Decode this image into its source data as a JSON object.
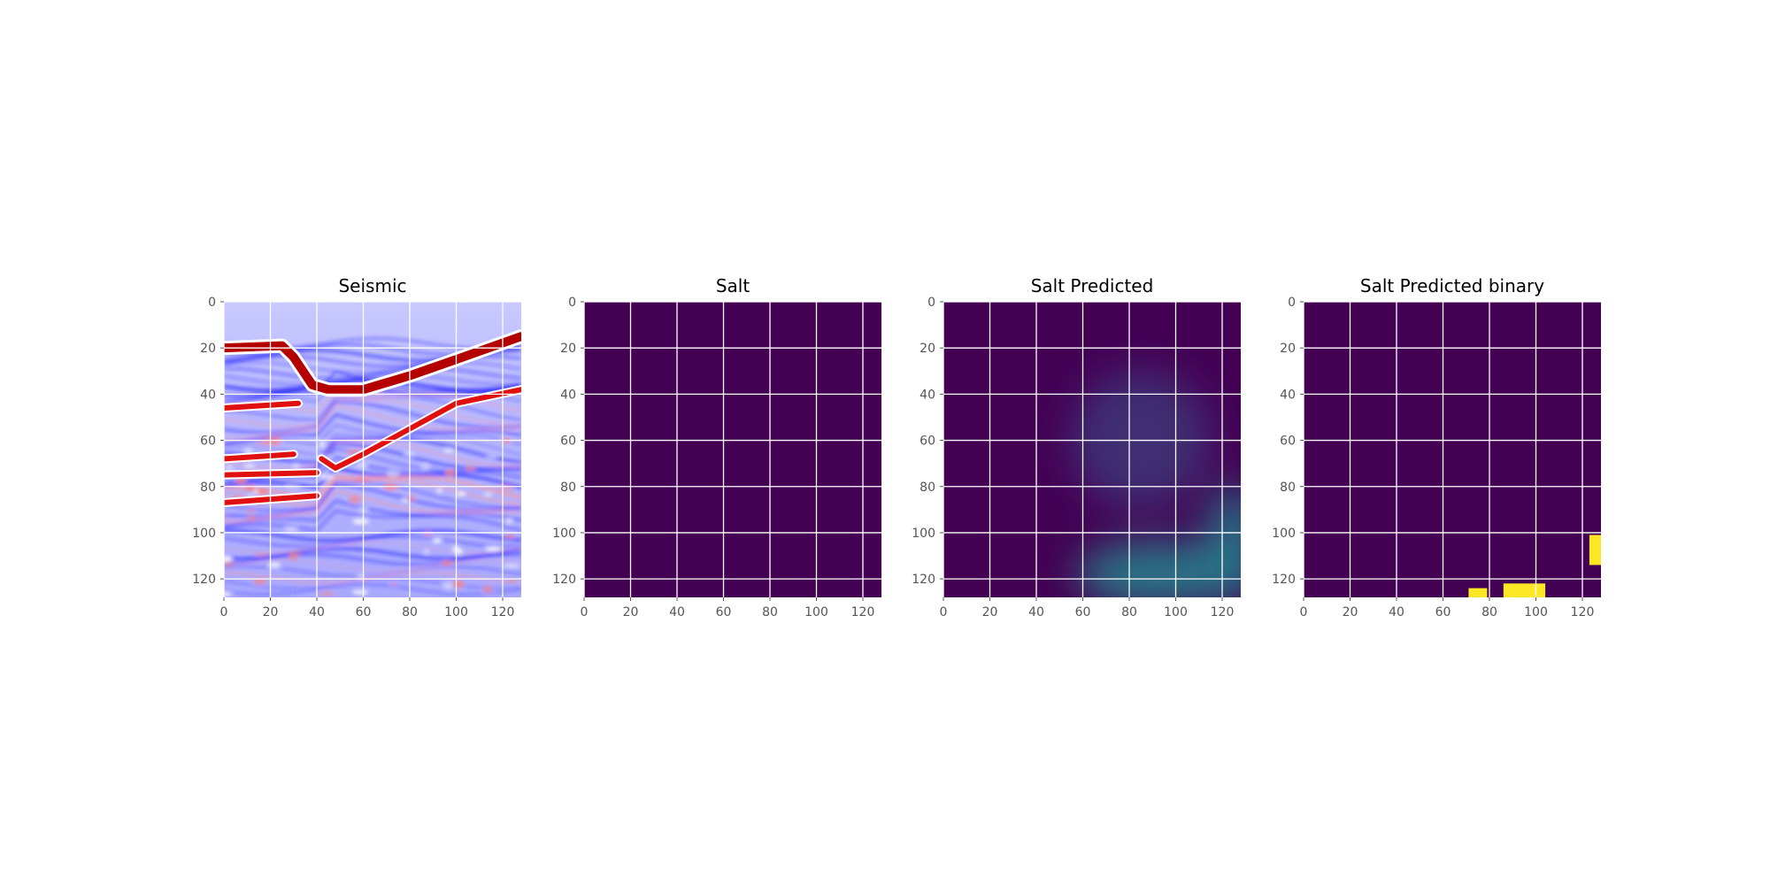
{
  "chart_data": [
    {
      "type": "heatmap",
      "title": "Seismic",
      "colormap": "seismic",
      "xlim": [
        0,
        128
      ],
      "ylim": [
        128,
        0
      ],
      "xticks": [
        0,
        20,
        40,
        60,
        80,
        100,
        120
      ],
      "yticks": [
        0,
        20,
        40,
        60,
        80,
        100,
        120
      ],
      "grid": true,
      "horizons": [
        {
          "color": "red",
          "points": [
            [
              0,
              20
            ],
            [
              25,
              19
            ],
            [
              30,
              24
            ],
            [
              38,
              36
            ],
            [
              45,
              38
            ],
            [
              60,
              38
            ],
            [
              80,
              32
            ],
            [
              100,
              25
            ],
            [
              128,
              15
            ]
          ]
        },
        {
          "color": "red",
          "points": [
            [
              0,
              46
            ],
            [
              32,
              44
            ]
          ]
        },
        {
          "color": "red",
          "points": [
            [
              0,
              68
            ],
            [
              30,
              66
            ]
          ]
        },
        {
          "color": "red",
          "points": [
            [
              0,
              75
            ],
            [
              40,
              74
            ]
          ]
        },
        {
          "color": "red",
          "points": [
            [
              0,
              87
            ],
            [
              40,
              84
            ]
          ]
        },
        {
          "color": "red",
          "points": [
            [
              42,
              68
            ],
            [
              48,
              72
            ],
            [
              60,
              66
            ],
            [
              80,
              55
            ],
            [
              100,
              44
            ],
            [
              128,
              38
            ]
          ]
        }
      ]
    },
    {
      "type": "heatmap",
      "title": "Salt",
      "colormap": "viridis",
      "xlim": [
        0,
        128
      ],
      "ylim": [
        128,
        0
      ],
      "xticks": [
        0,
        20,
        40,
        60,
        80,
        100,
        120
      ],
      "yticks": [
        0,
        20,
        40,
        60,
        80,
        100,
        120
      ],
      "grid": true,
      "values": "all 0"
    },
    {
      "type": "heatmap",
      "title": "Salt Predicted",
      "colormap": "viridis",
      "xlim": [
        0,
        128
      ],
      "ylim": [
        128,
        0
      ],
      "xticks": [
        0,
        20,
        40,
        60,
        80,
        100,
        120
      ],
      "yticks": [
        0,
        20,
        40,
        60,
        80,
        100,
        120
      ],
      "grid": true,
      "blobs": [
        {
          "x": 85,
          "y": 60,
          "rx": 30,
          "ry": 30,
          "intensity": 0.15
        },
        {
          "x": 92,
          "y": 118,
          "rx": 35,
          "ry": 14,
          "intensity": 0.45
        },
        {
          "x": 125,
          "y": 105,
          "rx": 12,
          "ry": 25,
          "intensity": 0.4
        }
      ]
    },
    {
      "type": "heatmap",
      "title": "Salt Predicted binary",
      "colormap": "viridis",
      "xlim": [
        0,
        128
      ],
      "ylim": [
        128,
        0
      ],
      "xticks": [
        0,
        20,
        40,
        60,
        80,
        100,
        120
      ],
      "yticks": [
        0,
        20,
        40,
        60,
        80,
        100,
        120
      ],
      "grid": true,
      "regions": [
        {
          "x0": 71,
          "y0": 124,
          "x1": 79,
          "y1": 128,
          "value": 1
        },
        {
          "x0": 86,
          "y0": 122,
          "x1": 104,
          "y1": 128,
          "value": 1
        },
        {
          "x0": 123,
          "y0": 101,
          "x1": 128,
          "y1": 114,
          "value": 1
        }
      ]
    }
  ]
}
